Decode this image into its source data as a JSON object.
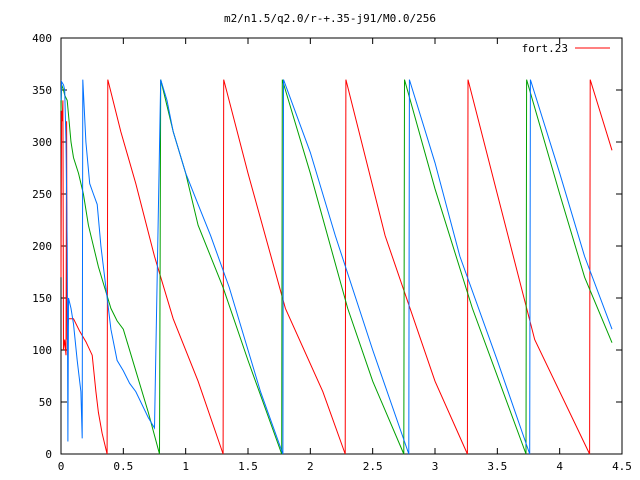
{
  "chart_data": {
    "type": "line",
    "title": "m2/n1.5/q2.0/r-+.35-j91/M0.0/256",
    "xlabel": "",
    "ylabel": "",
    "xlim": [
      0,
      4.5
    ],
    "ylim": [
      0,
      400
    ],
    "x_ticks": [
      "0",
      "0.5",
      "1",
      "1.5",
      "2",
      "2.5",
      "3",
      "3.5",
      "4",
      "4.5"
    ],
    "y_ticks": [
      "0",
      "50",
      "100",
      "150",
      "200",
      "250",
      "300",
      "350",
      "400"
    ],
    "grid": false,
    "legend_position": "top-right",
    "legend": [
      {
        "label": "fort.23",
        "color": "#ff0000"
      }
    ],
    "series": [
      {
        "name": "fort.23",
        "color": "#ff0000",
        "points": [
          [
            0,
            170
          ],
          [
            0.005,
            330
          ],
          [
            0.01,
            320
          ],
          [
            0.015,
            340
          ],
          [
            0.02,
            100
          ],
          [
            0.03,
            110
          ],
          [
            0.04,
            95
          ],
          [
            0.045,
            320
          ],
          [
            0.05,
            110
          ],
          [
            0.06,
            130
          ],
          [
            0.1,
            130
          ],
          [
            0.15,
            118
          ],
          [
            0.2,
            108
          ],
          [
            0.25,
            95
          ],
          [
            0.28,
            60
          ],
          [
            0.3,
            40
          ],
          [
            0.33,
            20
          ],
          [
            0.37,
            0
          ],
          [
            0.375,
            360
          ],
          [
            0.48,
            310
          ],
          [
            0.6,
            260
          ],
          [
            0.75,
            190
          ],
          [
            0.9,
            130
          ],
          [
            1.1,
            70
          ],
          [
            1.3,
            0
          ],
          [
            1.305,
            360
          ],
          [
            1.5,
            270
          ],
          [
            1.8,
            140
          ],
          [
            2.1,
            60
          ],
          [
            2.28,
            0
          ],
          [
            2.285,
            360
          ],
          [
            2.6,
            210
          ],
          [
            3.0,
            70
          ],
          [
            3.26,
            0
          ],
          [
            3.265,
            360
          ],
          [
            3.5,
            250
          ],
          [
            3.8,
            110
          ],
          [
            4.24,
            0
          ],
          [
            4.245,
            360
          ],
          [
            4.42,
            292
          ]
        ]
      },
      {
        "color": "#00a000",
        "points": [
          [
            0,
            330
          ],
          [
            0.005,
            355
          ],
          [
            0.02,
            350
          ],
          [
            0.03,
            345
          ],
          [
            0.05,
            340
          ],
          [
            0.08,
            300
          ],
          [
            0.1,
            285
          ],
          [
            0.14,
            270
          ],
          [
            0.18,
            250
          ],
          [
            0.22,
            220
          ],
          [
            0.3,
            180
          ],
          [
            0.4,
            140
          ],
          [
            0.45,
            128
          ],
          [
            0.5,
            120
          ],
          [
            0.6,
            80
          ],
          [
            0.7,
            40
          ],
          [
            0.79,
            0
          ],
          [
            0.8,
            360
          ],
          [
            0.9,
            310
          ],
          [
            1.0,
            270
          ],
          [
            1.1,
            220
          ],
          [
            1.3,
            160
          ],
          [
            1.5,
            90
          ],
          [
            1.77,
            0
          ],
          [
            1.775,
            360
          ],
          [
            2.0,
            270
          ],
          [
            2.3,
            140
          ],
          [
            2.5,
            70
          ],
          [
            2.75,
            0
          ],
          [
            2.755,
            360
          ],
          [
            3.0,
            255
          ],
          [
            3.3,
            140
          ],
          [
            3.73,
            0
          ],
          [
            3.735,
            360
          ],
          [
            4.0,
            250
          ],
          [
            4.2,
            170
          ],
          [
            4.42,
            107
          ]
        ]
      },
      {
        "color": "#0070ff",
        "points": [
          [
            0,
            340
          ],
          [
            0.005,
            358
          ],
          [
            0.02,
            355
          ],
          [
            0.03,
            350
          ],
          [
            0.04,
            300
          ],
          [
            0.05,
            200
          ],
          [
            0.055,
            12
          ],
          [
            0.06,
            150
          ],
          [
            0.08,
            140
          ],
          [
            0.1,
            125
          ],
          [
            0.13,
            90
          ],
          [
            0.16,
            60
          ],
          [
            0.17,
            15
          ],
          [
            0.175,
            360
          ],
          [
            0.2,
            300
          ],
          [
            0.23,
            260
          ],
          [
            0.26,
            250
          ],
          [
            0.29,
            240
          ],
          [
            0.32,
            200
          ],
          [
            0.36,
            160
          ],
          [
            0.4,
            120
          ],
          [
            0.45,
            90
          ],
          [
            0.5,
            80
          ],
          [
            0.55,
            68
          ],
          [
            0.6,
            60
          ],
          [
            0.7,
            35
          ],
          [
            0.75,
            25
          ],
          [
            0.8,
            360
          ],
          [
            0.85,
            340
          ],
          [
            0.9,
            310
          ],
          [
            1.0,
            270
          ],
          [
            1.1,
            240
          ],
          [
            1.2,
            210
          ],
          [
            1.35,
            160
          ],
          [
            1.5,
            100
          ],
          [
            1.6,
            60
          ],
          [
            1.78,
            0
          ],
          [
            1.785,
            360
          ],
          [
            2.0,
            290
          ],
          [
            2.2,
            210
          ],
          [
            2.5,
            100
          ],
          [
            2.79,
            0
          ],
          [
            2.795,
            360
          ],
          [
            3.0,
            280
          ],
          [
            3.2,
            190
          ],
          [
            3.5,
            90
          ],
          [
            3.76,
            0
          ],
          [
            3.765,
            360
          ],
          [
            4.0,
            270
          ],
          [
            4.2,
            190
          ],
          [
            4.42,
            120
          ]
        ]
      }
    ]
  }
}
